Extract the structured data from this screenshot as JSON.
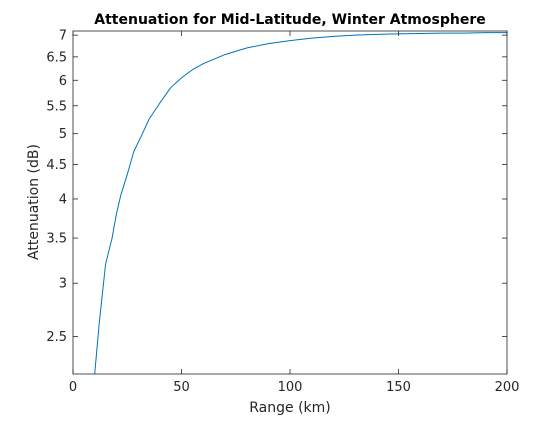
{
  "chart_data": {
    "type": "line",
    "title": "Attenuation for Mid-Latitude, Winter Atmosphere",
    "xlabel": "Range (km)",
    "ylabel": "Attenuation (dB)",
    "xlim": [
      0,
      200
    ],
    "ylim": [
      2.2,
      7.1
    ],
    "yscale": "log",
    "grid": false,
    "x_ticks": [
      0,
      50,
      100,
      150,
      200
    ],
    "x_tick_labels": [
      "0",
      "50",
      "100",
      "150",
      "200"
    ],
    "y_ticks": [
      2.5,
      3,
      3.5,
      4,
      4.5,
      5,
      5.5,
      6,
      6.5,
      7
    ],
    "y_tick_labels": [
      "2.5",
      "3",
      "3.5",
      "4",
      "4.5",
      "5",
      "5.5",
      "6",
      "6.5",
      "7"
    ],
    "series": [
      {
        "color": "#0072BD",
        "x": [
          10,
          12,
          15,
          18,
          20,
          22,
          25,
          28,
          30,
          32,
          35,
          40,
          45,
          50,
          55,
          60,
          70,
          80,
          90,
          100,
          110,
          120,
          130,
          140,
          150,
          160,
          170,
          180,
          190,
          200
        ],
        "y": [
          2.2,
          2.6,
          3.2,
          3.5,
          3.8,
          4.05,
          4.35,
          4.7,
          4.85,
          5.0,
          5.25,
          5.55,
          5.85,
          6.05,
          6.22,
          6.35,
          6.55,
          6.7,
          6.8,
          6.87,
          6.93,
          6.97,
          7.0,
          7.02,
          7.03,
          7.04,
          7.05,
          7.05,
          7.06,
          7.06
        ]
      }
    ]
  }
}
